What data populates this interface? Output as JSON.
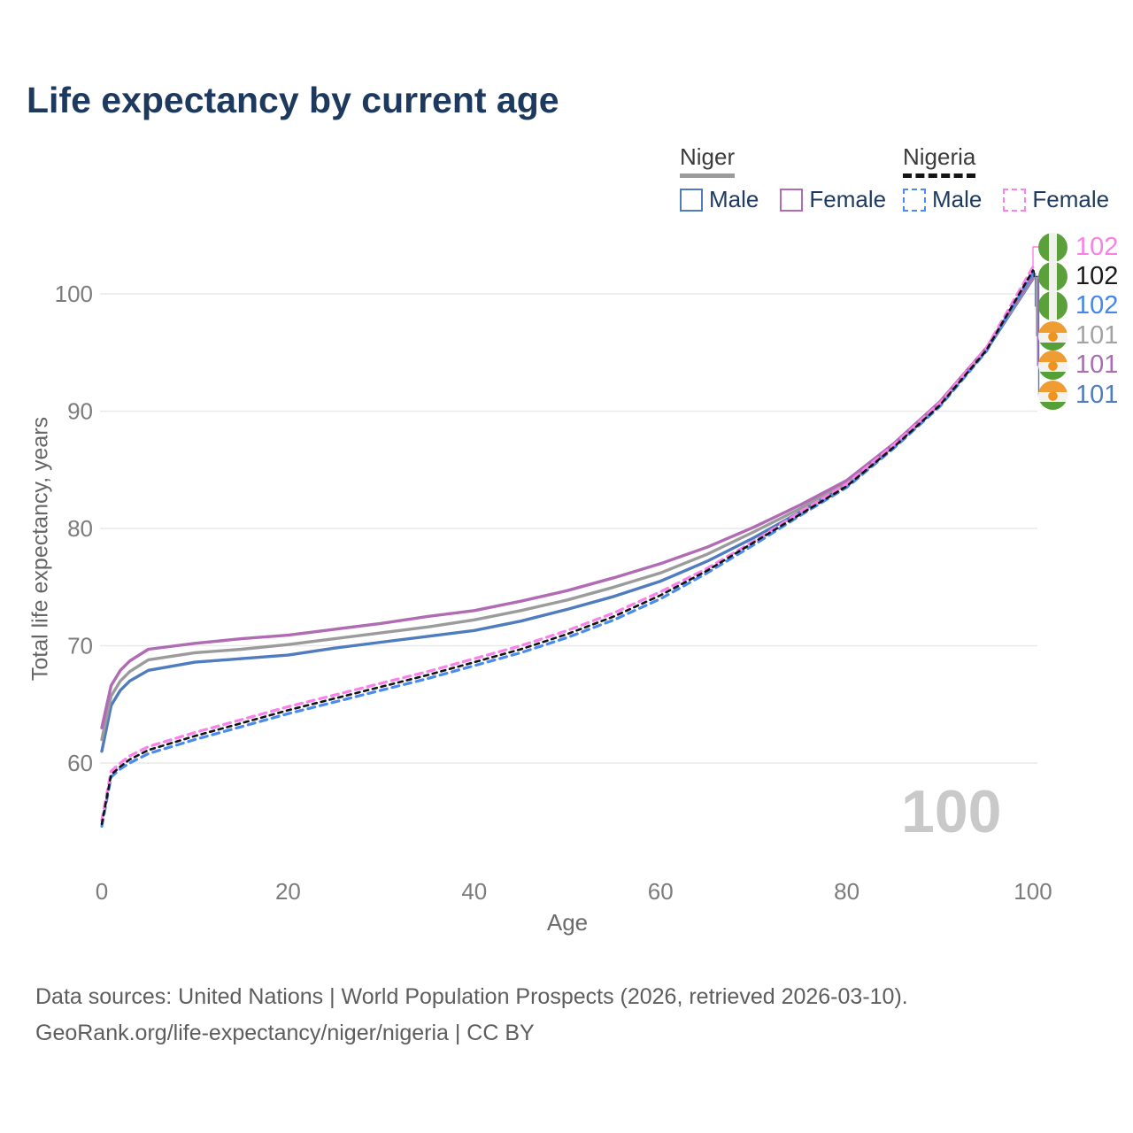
{
  "header": {
    "title": "Life expectancy by current age"
  },
  "legend": {
    "niger": {
      "label": "Niger",
      "male": "Male",
      "female": "Female"
    },
    "nigeria": {
      "label": "Nigeria",
      "male": "Male",
      "female": "Female"
    }
  },
  "watermark": "100",
  "footer": {
    "line1": "Data sources: United Nations | World Population Prospects (2026, retrieved 2026-03-10).",
    "line2": "GeoRank.org/life-expectancy/niger/nigeria | CC BY"
  },
  "colors": {
    "title_text": "#1d3a5e",
    "legend_text": "#1e3a5f",
    "gridline": "#e9e9e9",
    "tick_text": "#7c7c7c",
    "axis_title_text": "#666666",
    "watermark_text": "#c9c9c9",
    "footer_text": "#5d5d5d"
  },
  "chart_data": {
    "type": "line",
    "title": "Life expectancy by current age",
    "xlabel": "Age",
    "ylabel": "Total life expectancy, years",
    "xlim": [
      0,
      100
    ],
    "ylim": [
      54,
      105
    ],
    "xticks": [
      0,
      20,
      40,
      60,
      80,
      100
    ],
    "yticks": [
      60,
      70,
      80,
      90,
      100
    ],
    "grid": "horizontal",
    "legend_position": "top-right",
    "x": [
      0,
      1,
      2,
      3,
      5,
      10,
      15,
      20,
      25,
      30,
      35,
      40,
      45,
      50,
      55,
      60,
      65,
      70,
      75,
      80,
      85,
      90,
      95,
      100
    ],
    "series": [
      {
        "name": "Niger Male",
        "country": "Niger",
        "sex": "Male",
        "dash": "solid",
        "width": 3.4,
        "color": "#4e7cbf",
        "values": [
          61.0,
          64.9,
          66.2,
          67.0,
          67.9,
          68.6,
          68.9,
          69.2,
          69.8,
          70.3,
          70.8,
          71.3,
          72.1,
          73.1,
          74.2,
          75.5,
          77.2,
          79.2,
          81.4,
          83.8,
          87.0,
          90.6,
          95.2,
          101.3
        ],
        "end_value": 101
      },
      {
        "name": "Niger",
        "country": "Niger",
        "sex": "Both",
        "dash": "solid",
        "width": 3.4,
        "color": "#9b9b9b",
        "values": [
          62.0,
          65.7,
          67.0,
          67.8,
          68.8,
          69.4,
          69.7,
          70.1,
          70.6,
          71.1,
          71.6,
          72.2,
          73.0,
          73.9,
          75.0,
          76.2,
          77.8,
          79.7,
          81.7,
          83.9,
          87.1,
          90.7,
          95.3,
          101.4
        ],
        "end_value": 101
      },
      {
        "name": "Niger Female",
        "country": "Niger",
        "sex": "Female",
        "dash": "solid",
        "width": 3.4,
        "color": "#b16ab4",
        "values": [
          63.0,
          66.6,
          67.9,
          68.7,
          69.7,
          70.2,
          70.6,
          70.9,
          71.4,
          71.9,
          72.5,
          73.0,
          73.8,
          74.7,
          75.8,
          77.0,
          78.4,
          80.1,
          82.0,
          84.1,
          87.2,
          90.8,
          95.4,
          101.5
        ],
        "end_value": 101
      },
      {
        "name": "Nigeria Male",
        "country": "Nigeria",
        "sex": "Male",
        "dash": "dashed",
        "width": 3.2,
        "color": "#4a8bf0",
        "values": [
          54.6,
          58.8,
          59.5,
          60.0,
          60.8,
          62.0,
          63.1,
          64.2,
          65.2,
          66.2,
          67.2,
          68.3,
          69.4,
          70.7,
          72.2,
          74.0,
          76.2,
          78.6,
          81.1,
          83.5,
          86.8,
          90.4,
          95.1,
          101.8
        ],
        "end_value": 102
      },
      {
        "name": "Nigeria Female",
        "country": "Nigeria",
        "sex": "Female",
        "dash": "dashed",
        "width": 3.2,
        "color": "#fb80ea",
        "values": [
          55.1,
          59.3,
          60.0,
          60.6,
          61.4,
          62.6,
          63.7,
          64.8,
          65.8,
          66.8,
          67.8,
          68.9,
          70.0,
          71.3,
          72.8,
          74.6,
          76.6,
          78.9,
          81.4,
          83.8,
          87.1,
          90.7,
          95.4,
          102.3
        ],
        "end_value": 102
      },
      {
        "name": "Nigeria",
        "country": "Nigeria",
        "sex": "Both",
        "dash": "dashed",
        "width": 2.6,
        "color": "#141414",
        "values": [
          54.8,
          59.0,
          59.7,
          60.3,
          61.1,
          62.3,
          63.4,
          64.5,
          65.5,
          66.5,
          67.5,
          68.6,
          69.7,
          71.0,
          72.5,
          74.3,
          76.4,
          78.8,
          81.2,
          83.6,
          86.9,
          90.5,
          95.2,
          102.0
        ],
        "end_value": 102
      }
    ],
    "end_labels": [
      {
        "text": "102",
        "color": "#f980e6",
        "flag": "nigeria",
        "series": "Nigeria Female"
      },
      {
        "text": "102",
        "color": "#1a1a1a",
        "flag": "nigeria",
        "series": "Nigeria"
      },
      {
        "text": "102",
        "color": "#4287ec",
        "flag": "nigeria",
        "series": "Nigeria Male"
      },
      {
        "text": "101",
        "color": "#a3a3a3",
        "flag": "niger",
        "series": "Niger"
      },
      {
        "text": "101",
        "color": "#a86db3",
        "flag": "niger",
        "series": "Niger Female"
      },
      {
        "text": "101",
        "color": "#4e7cbf",
        "flag": "niger",
        "series": "Niger Male"
      }
    ]
  }
}
